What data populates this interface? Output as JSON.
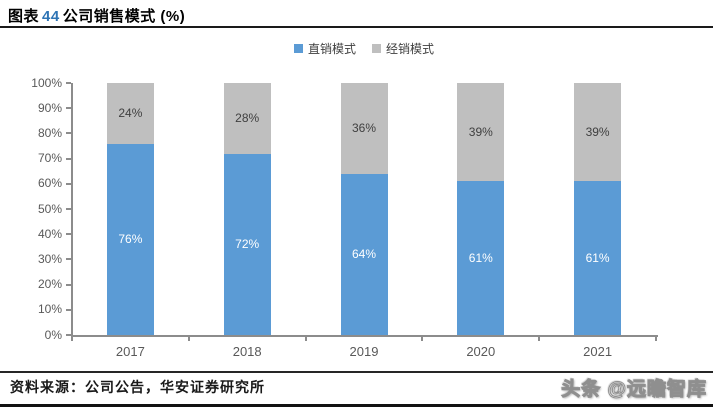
{
  "header": {
    "title_prefix": "图表",
    "title_number": "44",
    "title_rest": "公司销售模式 (%)"
  },
  "legend": [
    {
      "label": "直销模式",
      "color": "#5b9bd5"
    },
    {
      "label": "经销模式",
      "color": "#bfbfbf"
    }
  ],
  "chart_data": {
    "type": "bar",
    "stacked": true,
    "title": "图表44 公司销售模式 (%)",
    "categories": [
      "2017",
      "2018",
      "2019",
      "2020",
      "2021"
    ],
    "series": [
      {
        "name": "直销模式",
        "color": "#5b9bd5",
        "label_color": "#ffffff",
        "values": [
          76,
          72,
          64,
          61,
          61
        ]
      },
      {
        "name": "经销模式",
        "color": "#bfbfbf",
        "label_color": "#404040",
        "values": [
          24,
          28,
          36,
          39,
          39
        ]
      }
    ],
    "value_suffix": "%",
    "xlabel": "",
    "ylabel": "",
    "ylim": [
      0,
      100
    ],
    "ytick_step": 10,
    "yticks": [
      "0%",
      "10%",
      "20%",
      "30%",
      "40%",
      "50%",
      "60%",
      "70%",
      "80%",
      "90%",
      "100%"
    ],
    "grid": false,
    "legend_position": "top-center"
  },
  "footer": {
    "source": "资料来源：公司公告，华安证券研究所",
    "watermark": "头条 @远瞻智库"
  }
}
